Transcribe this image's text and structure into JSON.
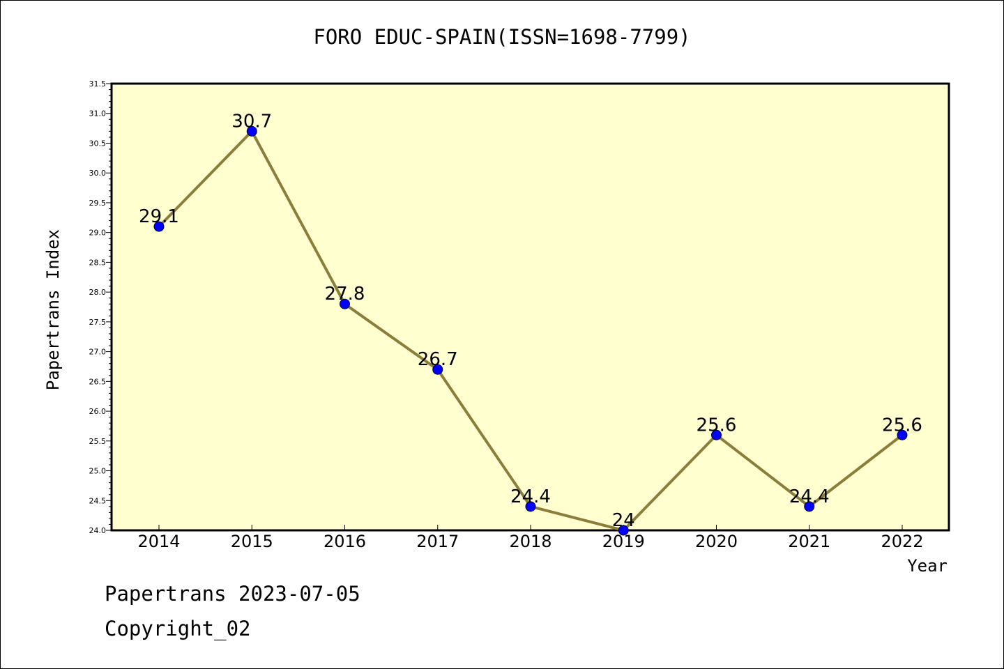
{
  "chart_data": {
    "type": "line",
    "title": "FORO EDUC-SPAIN(ISSN=1698-7799)",
    "xlabel": "Year",
    "ylabel": "Papertrans Index",
    "categories": [
      "2014",
      "2015",
      "2016",
      "2017",
      "2018",
      "2019",
      "2020",
      "2021",
      "2022"
    ],
    "series": [
      {
        "values": [
          29.1,
          30.7,
          27.8,
          26.7,
          24.4,
          24,
          25.6,
          24.4,
          25.6
        ],
        "labels": [
          "29.1",
          "30.7",
          "27.8",
          "26.7",
          "24.4",
          "24",
          "25.6",
          "24.4",
          "25.6"
        ]
      }
    ],
    "ylim": [
      24.0,
      31.5
    ],
    "yticks": [
      "24.0",
      "24.5",
      "25.0",
      "25.5",
      "26.0",
      "26.5",
      "27.0",
      "27.5",
      "28.0",
      "28.5",
      "29.0",
      "29.5",
      "30.0",
      "30.5",
      "31.0",
      "31.5"
    ],
    "grid": false,
    "colors": {
      "plot_background": "#ffffd0",
      "line": "#8b7d3a",
      "marker": "#0000ff"
    }
  },
  "footer": {
    "line1": "Papertrans 2023-07-05",
    "line2": "Copyright_02"
  }
}
